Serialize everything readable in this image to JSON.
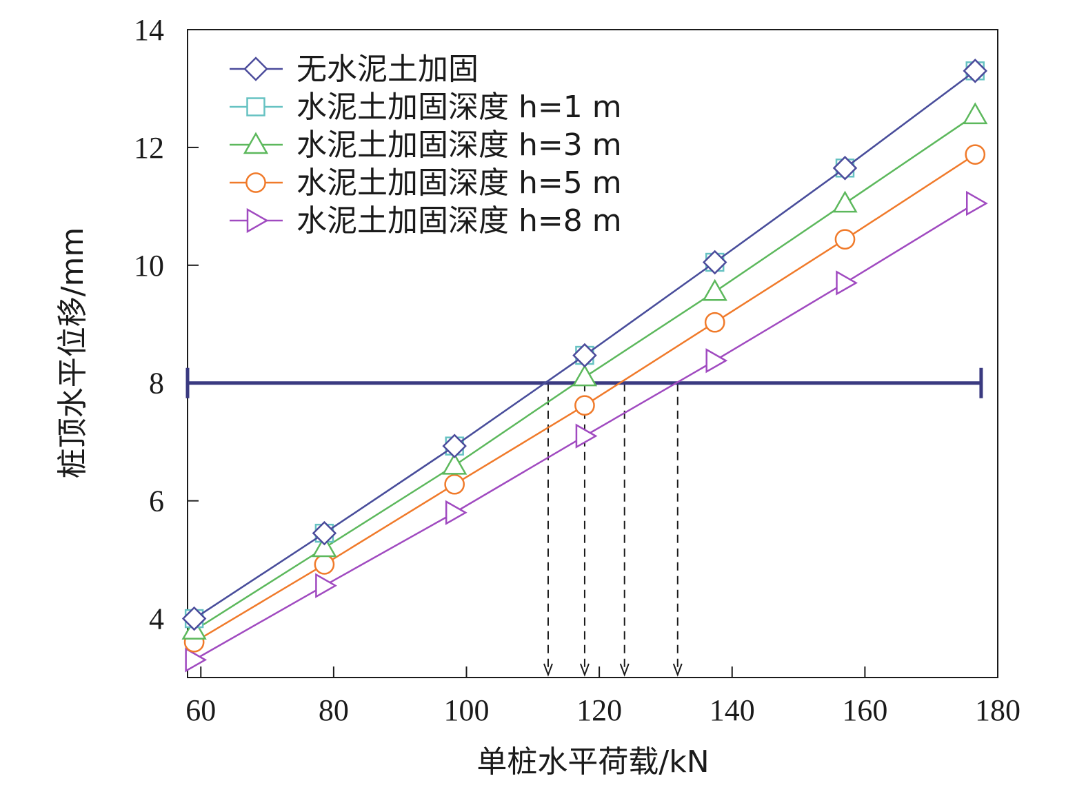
{
  "chart_data": {
    "type": "line",
    "title": "",
    "xlabel": "单桩水平荷载/kN",
    "ylabel": "桩顶水平位移/mm",
    "xlim": [
      58,
      180
    ],
    "ylim": [
      3,
      14
    ],
    "x_ticks": [
      60,
      80,
      100,
      120,
      140,
      160,
      180
    ],
    "y_ticks": [
      4,
      6,
      8,
      10,
      12,
      14
    ],
    "x_tick_labels": [
      "60",
      "80",
      "100",
      "120",
      "140",
      "160",
      "180"
    ],
    "y_tick_labels": [
      "4",
      "6",
      "8",
      "10",
      "12",
      "14"
    ],
    "grid": false,
    "legend_position": "top-left",
    "x": [
      59,
      78.6,
      98.2,
      117.8,
      137.4,
      157,
      176.6
    ],
    "series": [
      {
        "name": "无水泥土加固",
        "marker": "diamond",
        "color": "#4b4b9b",
        "values": [
          4.0,
          5.45,
          6.93,
          8.47,
          10.05,
          11.65,
          13.3
        ]
      },
      {
        "name": "水泥土加固深度 h=1 m",
        "marker": "square",
        "color": "#66c2c2",
        "values": [
          4.0,
          5.45,
          6.93,
          8.47,
          10.05,
          11.65,
          13.3
        ]
      },
      {
        "name": "水泥土加固深度 h=3 m",
        "marker": "triangle-up",
        "color": "#5cb85c",
        "values": [
          3.8,
          5.2,
          6.6,
          8.1,
          9.55,
          11.05,
          12.55
        ]
      },
      {
        "name": "水泥土加固深度 h=5 m",
        "marker": "circle",
        "color": "#f07a2a",
        "values": [
          3.6,
          4.92,
          6.28,
          7.62,
          9.03,
          10.44,
          11.88
        ]
      },
      {
        "name": "水泥土加固深度 h=8 m",
        "marker": "triangle-right",
        "color": "#a04ac0",
        "values": [
          3.3,
          4.56,
          5.8,
          7.1,
          8.38,
          9.7,
          11.05
        ]
      }
    ],
    "annotations": {
      "threshold_line": {
        "y": 8,
        "x_range": [
          58,
          177.5
        ],
        "color": "#3a3a80"
      },
      "drop_lines": [
        112.3,
        117.8,
        123.8,
        131.8
      ]
    }
  }
}
